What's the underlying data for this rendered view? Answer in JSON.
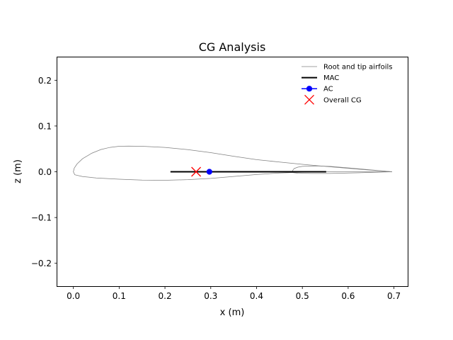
{
  "chart_data": {
    "type": "line",
    "title": "CG Analysis",
    "xlabel": "x (m)",
    "ylabel": "z (m)",
    "xlim": [
      -0.035,
      0.73
    ],
    "ylim": [
      -0.25,
      0.25
    ],
    "xticks": [
      0.0,
      0.1,
      0.2,
      0.3,
      0.4,
      0.5,
      0.6,
      0.7
    ],
    "xtick_labels": [
      "0.0",
      "0.1",
      "0.2",
      "0.3",
      "0.4",
      "0.5",
      "0.6",
      "0.7"
    ],
    "yticks": [
      0.2,
      0.1,
      0.0,
      -0.1,
      -0.2
    ],
    "ytick_labels": [
      "0.2",
      "0.1",
      "0.0",
      "−0.1",
      "−0.2"
    ],
    "grid": false,
    "legend_position": "top-right",
    "series": [
      {
        "name": "Root and tip airfoils",
        "kind": "line",
        "color": "#808080",
        "segments": [
          [
            [
              0.696,
              0.0
            ],
            [
              0.65,
              0.0034
            ],
            [
              0.6,
              0.0075
            ],
            [
              0.55,
              0.0118
            ],
            [
              0.5,
              0.0163
            ],
            [
              0.45,
              0.0212
            ],
            [
              0.4,
              0.0266
            ],
            [
              0.35,
              0.0339
            ],
            [
              0.3,
              0.0418
            ],
            [
              0.25,
              0.0483
            ],
            [
              0.2,
              0.0532
            ],
            [
              0.15,
              0.0558
            ],
            [
              0.12,
              0.0562
            ],
            [
              0.1,
              0.0558
            ],
            [
              0.08,
              0.0533
            ],
            [
              0.06,
              0.0485
            ],
            [
              0.04,
              0.0405
            ],
            [
              0.02,
              0.0285
            ],
            [
              0.008,
              0.017
            ],
            [
              0.002,
              0.008
            ],
            [
              0.0,
              0.0
            ],
            [
              0.003,
              -0.0065
            ],
            [
              0.02,
              -0.0105
            ],
            [
              0.05,
              -0.0135
            ],
            [
              0.1,
              -0.0163
            ],
            [
              0.15,
              -0.0182
            ],
            [
              0.2,
              -0.0185
            ],
            [
              0.25,
              -0.0173
            ],
            [
              0.3,
              -0.0145
            ],
            [
              0.35,
              -0.0103
            ],
            [
              0.4,
              -0.006
            ],
            [
              0.45,
              -0.0027
            ],
            [
              0.5,
              -0.001
            ],
            [
              0.55,
              -0.0002
            ],
            [
              0.6,
              -0.0001
            ],
            [
              0.696,
              0.0
            ]
          ],
          [
            [
              0.696,
              0.0
            ],
            [
              0.65,
              0.004
            ],
            [
              0.6,
              0.0086
            ],
            [
              0.56,
              0.0118
            ],
            [
              0.53,
              0.0128
            ],
            [
              0.5,
              0.0118
            ],
            [
              0.49,
              0.01
            ],
            [
              0.482,
              0.007
            ],
            [
              0.479,
              0.003
            ],
            [
              0.478,
              0.0
            ],
            [
              0.48,
              -0.002
            ],
            [
              0.49,
              -0.003
            ],
            [
              0.52,
              -0.0037
            ],
            [
              0.56,
              -0.0036
            ],
            [
              0.6,
              -0.0028
            ],
            [
              0.65,
              -0.0014
            ],
            [
              0.696,
              0.0
            ]
          ]
        ]
      },
      {
        "name": "MAC",
        "kind": "line",
        "color": "#000000",
        "points": [
          [
            0.212,
            0.0
          ],
          [
            0.552,
            0.0
          ]
        ]
      },
      {
        "name": "AC",
        "kind": "marker",
        "marker": "circle",
        "color": "#0000ff",
        "points": [
          [
            0.297,
            0.0
          ]
        ]
      },
      {
        "name": "Overall CG",
        "kind": "marker",
        "marker": "x",
        "color": "#ff0000",
        "points": [
          [
            0.268,
            0.0
          ]
        ]
      }
    ]
  }
}
